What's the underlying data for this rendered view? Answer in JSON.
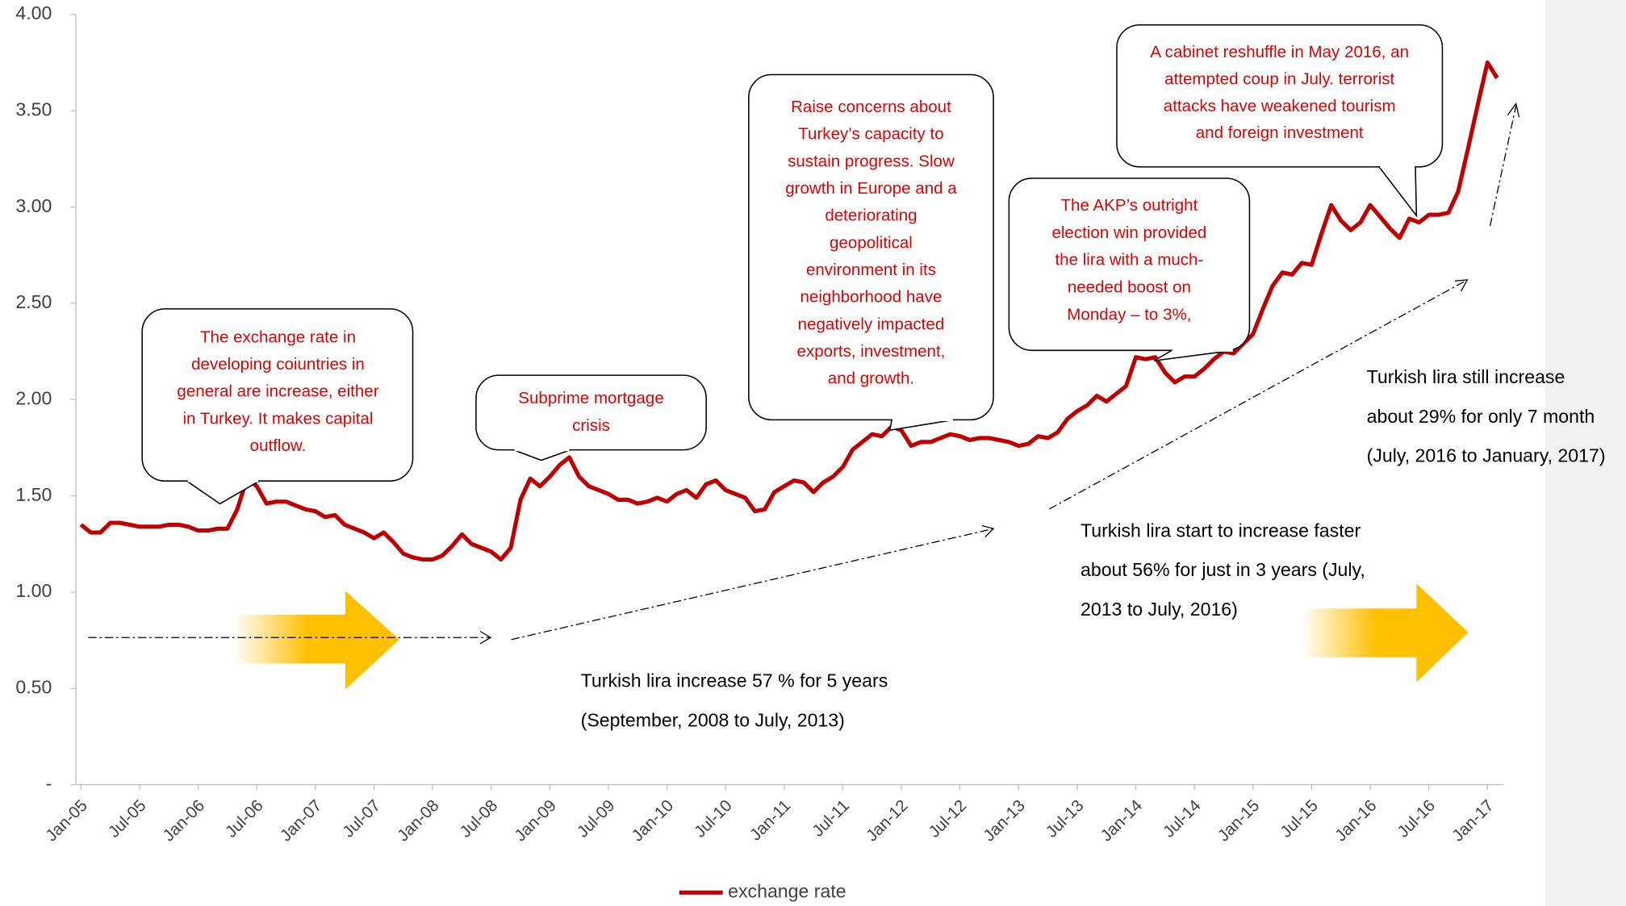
{
  "chart_data": {
    "type": "line",
    "categories": [
      "Jan-05",
      null,
      null,
      null,
      null,
      null,
      "Jul-05",
      null,
      null,
      null,
      null,
      null,
      "Jan-06",
      null,
      null,
      null,
      null,
      null,
      "Jul-06",
      null,
      null,
      null,
      null,
      null,
      "Jan-07",
      null,
      null,
      null,
      null,
      null,
      "Jul-07",
      null,
      null,
      null,
      null,
      null,
      "Jan-08",
      null,
      null,
      null,
      null,
      null,
      "Jul-08",
      null,
      null,
      null,
      null,
      null,
      "Jan-09",
      null,
      null,
      null,
      null,
      null,
      "Jul-09",
      null,
      null,
      null,
      null,
      null,
      "Jan-10",
      null,
      null,
      null,
      null,
      null,
      "Jul-10",
      null,
      null,
      null,
      null,
      null,
      "Jan-11",
      null,
      null,
      null,
      null,
      null,
      "Jul-11",
      null,
      null,
      null,
      null,
      null,
      "Jan-12",
      null,
      null,
      null,
      null,
      null,
      "Jul-12",
      null,
      null,
      null,
      null,
      null,
      "Jan-13",
      null,
      null,
      null,
      null,
      null,
      "Jul-13",
      null,
      null,
      null,
      null,
      null,
      "Jan-14",
      null,
      null,
      null,
      null,
      null,
      "Jul-14",
      null,
      null,
      null,
      null,
      null,
      "Jan-15",
      null,
      null,
      null,
      null,
      null,
      "Jul-15",
      null,
      null,
      null,
      null,
      null,
      "Jan-16",
      null,
      null,
      null,
      null,
      null,
      "Jul-16",
      null,
      null,
      null,
      null,
      null,
      "Jan-17",
      null
    ],
    "series": [
      {
        "name": "exchange rate",
        "color": "#c00000",
        "values": [
          1.35,
          1.31,
          1.31,
          1.36,
          1.36,
          1.35,
          1.34,
          1.34,
          1.34,
          1.35,
          1.35,
          1.34,
          1.32,
          1.32,
          1.33,
          1.33,
          1.43,
          1.59,
          1.55,
          1.46,
          1.47,
          1.47,
          1.45,
          1.43,
          1.42,
          1.39,
          1.4,
          1.35,
          1.33,
          1.31,
          1.28,
          1.31,
          1.26,
          1.2,
          1.18,
          1.17,
          1.17,
          1.19,
          1.24,
          1.3,
          1.25,
          1.23,
          1.21,
          1.17,
          1.23,
          1.48,
          1.59,
          1.55,
          1.6,
          1.66,
          1.7,
          1.6,
          1.55,
          1.53,
          1.51,
          1.48,
          1.48,
          1.46,
          1.47,
          1.49,
          1.47,
          1.51,
          1.53,
          1.49,
          1.56,
          1.58,
          1.53,
          1.51,
          1.49,
          1.42,
          1.43,
          1.52,
          1.55,
          1.58,
          1.57,
          1.52,
          1.57,
          1.6,
          1.65,
          1.74,
          1.78,
          1.82,
          1.81,
          1.86,
          1.84,
          1.76,
          1.78,
          1.78,
          1.8,
          1.82,
          1.81,
          1.79,
          1.8,
          1.8,
          1.79,
          1.78,
          1.76,
          1.77,
          1.81,
          1.8,
          1.83,
          1.9,
          1.94,
          1.97,
          2.02,
          1.99,
          2.03,
          2.07,
          2.22,
          2.21,
          2.22,
          2.14,
          2.09,
          2.12,
          2.12,
          2.16,
          2.21,
          2.25,
          2.24,
          2.29,
          2.34,
          2.47,
          2.59,
          2.66,
          2.65,
          2.71,
          2.7,
          2.86,
          3.01,
          2.93,
          2.88,
          2.92,
          3.01,
          2.95,
          2.89,
          2.84,
          2.94,
          2.92,
          2.96,
          2.96,
          2.97,
          3.08,
          3.3,
          3.53,
          3.75,
          3.67
        ]
      }
    ],
    "ylim": [
      0,
      4
    ],
    "yticks": [
      {
        "value": 0,
        "label": "-"
      },
      {
        "value": 0.5,
        "label": "0.50"
      },
      {
        "value": 1,
        "label": "1.00"
      },
      {
        "value": 1.5,
        "label": "1.50"
      },
      {
        "value": 2,
        "label": "2.00"
      },
      {
        "value": 2.5,
        "label": "2.50"
      },
      {
        "value": 3,
        "label": "3.00"
      },
      {
        "value": 3.5,
        "label": "3.50"
      },
      {
        "value": 4,
        "label": "4.00"
      }
    ],
    "grid": false,
    "legend": "bottom",
    "annotations": [
      {
        "lines": [
          "The exchange rate in",
          "developing coiuntries in",
          "general are increase, either",
          "in Turkey. It makes capital",
          "outflow."
        ]
      },
      {
        "lines": [
          "Subprime mortgage",
          "crisis"
        ]
      },
      {
        "lines": [
          "Raise concerns about",
          "Turkey’s capacity to",
          "sustain progress. Slow",
          "growth in Europe and a",
          "deteriorating",
          "geopolitical",
          "environment in its",
          "neighborhood have",
          "negatively impacted",
          "exports, investment,",
          "and growth."
        ]
      },
      {
        "lines": [
          "The AKP’s outright",
          "election win provided",
          "the lira with a much-",
          "needed boost on",
          "Monday – to 3%,"
        ]
      },
      {
        "lines": [
          "A cabinet reshuffle in May 2016, an",
          "attempted coup in July. terrorist",
          "attacks have weakened tourism",
          "and foreign investment"
        ]
      },
      {
        "lines": [
          "Turkish lira increase 57 % for 5 years",
          "(September, 2008 to July, 2013)"
        ]
      },
      {
        "lines": [
          "Turkish lira start to increase faster",
          "about 56% for just in 3 years (July,",
          "2013 to July, 2016)"
        ]
      },
      {
        "lines": [
          "Turkish lira still increase",
          "about 29% for only 7 month",
          "(July, 2016 to January, 2017)"
        ]
      }
    ]
  }
}
